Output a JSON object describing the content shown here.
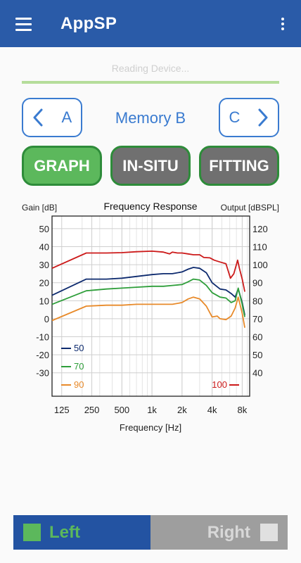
{
  "appbar": {
    "title": "AppSP",
    "menu_icon": "hamburger-icon",
    "more_icon": "more-vert-icon"
  },
  "status": {
    "text": "Reading Device...",
    "progress": 1.0
  },
  "memory_nav": {
    "prev_label": "A",
    "current": "Memory B",
    "next_label": "C"
  },
  "modes": {
    "graph": "GRAPH",
    "insitu": "IN-SITU",
    "fitting": "FITTING",
    "active": "graph"
  },
  "chart_data": {
    "type": "line",
    "title": "Frequency Response",
    "xlabel": "Frequency [Hz]",
    "ylabel": "Gain [dB]",
    "y2label": "Output [dBSPL]",
    "x_scale": "log",
    "xlim": [
      100,
      9500
    ],
    "x_ticks": [
      125,
      250,
      500,
      1000,
      2000,
      4000,
      8000
    ],
    "x_tick_labels": [
      "125",
      "250",
      "500",
      "1k",
      "2k",
      "4k",
      "8k"
    ],
    "ylim": [
      -43,
      57
    ],
    "y_ticks": [
      50,
      40,
      30,
      20,
      10,
      0,
      -10,
      -20,
      -30
    ],
    "y2_ticks": [
      120,
      110,
      100,
      90,
      80,
      70,
      60,
      50,
      40
    ],
    "grid": true,
    "series": [
      {
        "name": "50",
        "color": "#0d2a6e",
        "x": [
          100,
          220,
          350,
          500,
          700,
          1000,
          1300,
          1600,
          2000,
          2300,
          2600,
          3000,
          3500,
          4000,
          4800,
          5500,
          6200,
          6800,
          7300,
          8000,
          8500
        ],
        "y": [
          13,
          22,
          22,
          22.5,
          23.5,
          24.5,
          25,
          25,
          26,
          27.5,
          28.5,
          28,
          25.5,
          20,
          16.5,
          16,
          14,
          12,
          16.5,
          9,
          2
        ]
      },
      {
        "name": "70",
        "color": "#2e9e3a",
        "x": [
          100,
          220,
          350,
          500,
          700,
          1000,
          1300,
          1600,
          2000,
          2300,
          2600,
          3000,
          3500,
          4000,
          4800,
          5500,
          6200,
          6800,
          7300,
          8000,
          8500
        ],
        "y": [
          8,
          15.5,
          16.5,
          17,
          17.5,
          18,
          18,
          18.5,
          19,
          20.5,
          22,
          21.5,
          18.5,
          14.5,
          12,
          11.5,
          9,
          10,
          17,
          8,
          1
        ]
      },
      {
        "name": "90",
        "color": "#e88a2a",
        "x": [
          100,
          220,
          350,
          500,
          700,
          1000,
          1300,
          1600,
          2000,
          2300,
          2600,
          3000,
          3500,
          4000,
          4500,
          4800,
          5500,
          6200,
          6800,
          7300,
          8000,
          8500
        ],
        "y": [
          -1,
          7,
          7.5,
          7.5,
          8,
          8,
          8,
          8,
          9,
          11,
          12,
          11,
          7,
          1,
          1.5,
          0,
          -0.5,
          1.5,
          6,
          12,
          3,
          -5
        ]
      },
      {
        "name": "100",
        "color": "#cc1a1a",
        "x": [
          100,
          220,
          350,
          500,
          700,
          1000,
          1300,
          1500,
          1600,
          1800,
          2000,
          2300,
          2600,
          3000,
          3300,
          3800,
          4200,
          4800,
          5500,
          6100,
          6600,
          7200,
          7500,
          8000,
          8500
        ],
        "y": [
          28,
          36.5,
          36.5,
          36.7,
          37.2,
          37.5,
          37,
          36,
          37,
          36.5,
          36.5,
          36,
          35.5,
          35.5,
          34,
          33.8,
          32.5,
          31.5,
          30.5,
          22.5,
          25,
          32.5,
          28,
          22,
          15
        ]
      }
    ]
  },
  "ear_toggle": {
    "left": "Left",
    "right": "Right",
    "selected": "left"
  }
}
